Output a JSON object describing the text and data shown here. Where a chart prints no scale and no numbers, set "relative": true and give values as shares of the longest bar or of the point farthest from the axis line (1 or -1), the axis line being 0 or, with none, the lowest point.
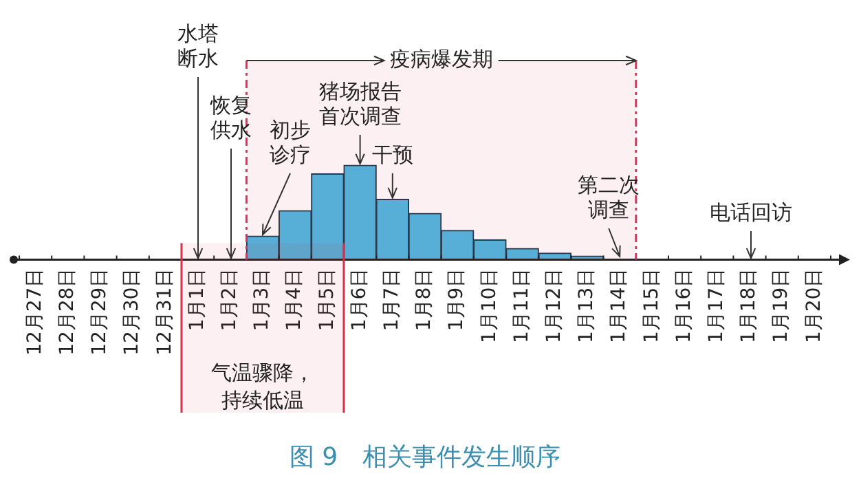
{
  "chart_data": {
    "type": "bar",
    "title": "图 9　相关事件发生顺序",
    "relative": true,
    "categories": [
      "12月27日",
      "12月28日",
      "12月29日",
      "12月30日",
      "12月31日",
      "1月1日",
      "1月2日",
      "1月3日",
      "1月4日",
      "1月5日",
      "1月6日",
      "1月7日",
      "1月8日",
      "1月9日",
      "1月10日",
      "1月11日",
      "1月12日",
      "1月13日",
      "1月14日",
      "1月15日",
      "1月16日",
      "1月17日",
      "1月18日",
      "1月19日",
      "1月20日"
    ],
    "values": [
      null,
      null,
      null,
      null,
      null,
      null,
      null,
      0.25,
      0.52,
      0.91,
      1,
      0.64,
      0.49,
      0.31,
      0.21,
      0.12,
      0.07,
      0.04,
      null,
      null,
      null,
      null,
      null,
      null,
      null
    ],
    "color": "#4db8e0",
    "annotations": [
      "水塔断水",
      "恢复供水",
      {
        "text": "初步诊疗",
        "x": "1月3日",
        "y": 0.25
      },
      {
        "text": "猪场报告首次调查",
        "x": "1月6日",
        "y": 1
      },
      {
        "text": "干预",
        "x": "1月7日",
        "y": 0.64
      },
      {
        "text": "第二次调查",
        "x": "1月14日",
        "y": 0.02
      },
      "电话回访"
    ],
    "bands": [
      {
        "axis": "x",
        "from": "1月3日",
        "to": "1月14日",
        "label": "疫病爆发期",
        "color": "#e0305a"
      },
      {
        "axis": "x",
        "from": "1月1日",
        "to": "1月5日",
        "label": "气温骤降，持续低温",
        "color": "#d9304a"
      }
    ],
    "legend": false
  }
}
